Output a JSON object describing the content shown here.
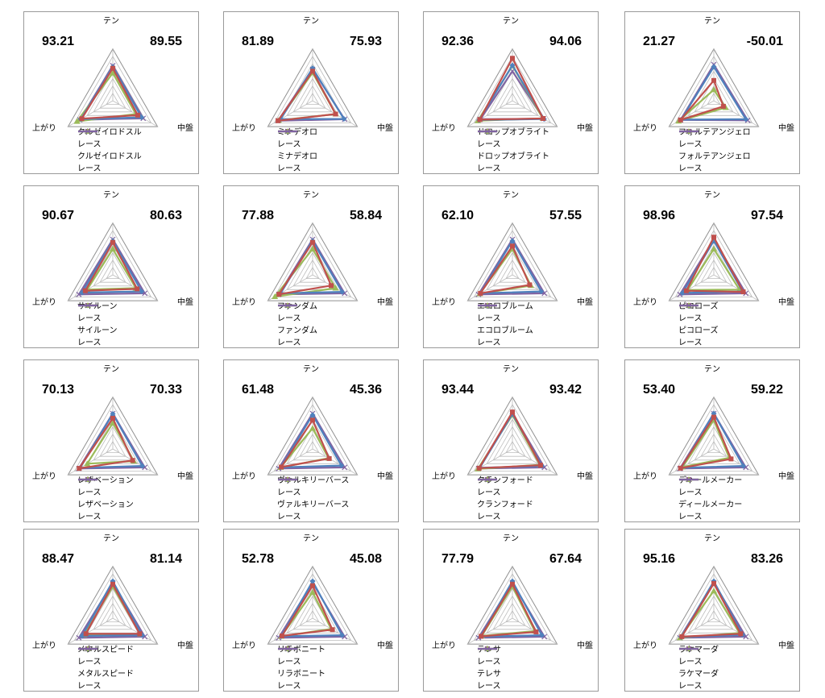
{
  "axes": [
    "テン",
    "中盤",
    "上がり"
  ],
  "colors": {
    "red": "#C0504D",
    "blue": "#4F81BD",
    "green": "#9BBB59",
    "purple": "#8064A2"
  },
  "race_label": "レース",
  "chart_data": [
    {
      "type": "radar",
      "left_value": "93.21",
      "right_value": "89.55",
      "horse": "クルゼイロドスル",
      "axes": [
        "テン",
        "中盤",
        "上がり"
      ],
      "rmax": 120,
      "series": [
        {
          "name": "クルゼイロドスル",
          "color": "#C0504D",
          "values": [
            88,
            78,
            97
          ]
        },
        {
          "name": "レース",
          "color": "#4F81BD",
          "values": [
            92,
            90,
            100
          ]
        },
        {
          "name": "クルゼイロドスル",
          "color": "#9BBB59",
          "values": [
            75,
            72,
            112
          ]
        },
        {
          "name": "レース",
          "color": "#8064A2",
          "values": [
            95,
            95,
            103
          ]
        }
      ]
    },
    {
      "type": "radar",
      "left_value": "81.89",
      "right_value": "75.93",
      "horse": "ミナデオロ",
      "axes": [
        "テン",
        "中盤",
        "上がり"
      ],
      "rmax": 120,
      "series": [
        {
          "name": "ミナデオロ",
          "color": "#C0504D",
          "values": [
            80,
            72,
            108
          ]
        },
        {
          "name": "レース",
          "color": "#4F81BD",
          "values": [
            88,
            98,
            100
          ]
        },
        {
          "name": "ミナデオロ",
          "color": "#9BBB59",
          "values": [
            76,
            72,
            106
          ]
        },
        {
          "name": "レース",
          "color": "#8064A2",
          "values": [
            85,
            100,
            108
          ]
        }
      ]
    },
    {
      "type": "radar",
      "left_value": "92.36",
      "right_value": "94.06",
      "horse": "ドロップオブライト",
      "axes": [
        "テン",
        "中盤",
        "上がり"
      ],
      "rmax": 120,
      "series": [
        {
          "name": "ドロップオブライト",
          "color": "#C0504D",
          "values": [
            115,
            96,
            102
          ]
        },
        {
          "name": "レース",
          "color": "#4F81BD",
          "values": [
            96,
            99,
            104
          ]
        },
        {
          "name": "ドロップオブライト",
          "color": "#9BBB59",
          "values": [
            95,
            95,
            108
          ]
        },
        {
          "name": "レース",
          "color": "#8064A2",
          "values": [
            80,
            97,
            100
          ]
        }
      ]
    },
    {
      "type": "radar",
      "left_value": "21.27",
      "right_value": "-50.01",
      "horse": "フォルテアンジェロ",
      "axes": [
        "テン",
        "中盤",
        "上がり"
      ],
      "rmax": 120,
      "series": [
        {
          "name": "フォルテアンジェロ",
          "color": "#C0504D",
          "values": [
            55,
            30,
            104
          ]
        },
        {
          "name": "レース",
          "color": "#4F81BD",
          "values": [
            92,
            100,
            102
          ]
        },
        {
          "name": "フォルテアンジェロ",
          "color": "#9BBB59",
          "values": [
            30,
            37,
            110
          ]
        },
        {
          "name": "レース",
          "color": "#8064A2",
          "values": [
            98,
            106,
            104
          ]
        }
      ]
    },
    {
      "type": "radar",
      "left_value": "90.67",
      "right_value": "80.63",
      "horse": "サイルーン",
      "axes": [
        "テン",
        "中盤",
        "上がり"
      ],
      "rmax": 120,
      "series": [
        {
          "name": "サイルーン",
          "color": "#C0504D",
          "values": [
            88,
            76,
            86
          ]
        },
        {
          "name": "レース",
          "color": "#4F81BD",
          "values": [
            92,
            90,
            96
          ]
        },
        {
          "name": "サイルーン",
          "color": "#9BBB59",
          "values": [
            70,
            72,
            80
          ]
        },
        {
          "name": "レース",
          "color": "#8064A2",
          "values": [
            96,
            100,
            106
          ]
        }
      ]
    },
    {
      "type": "radar",
      "left_value": "77.88",
      "right_value": "58.84",
      "horse": "ファンダム",
      "axes": [
        "テン",
        "中盤",
        "上がり"
      ],
      "rmax": 120,
      "series": [
        {
          "name": "ファンダム",
          "color": "#C0504D",
          "values": [
            88,
            58,
            105
          ]
        },
        {
          "name": "レース",
          "color": "#4F81BD",
          "values": [
            92,
            92,
            100
          ]
        },
        {
          "name": "ファンダム",
          "color": "#9BBB59",
          "values": [
            70,
            72,
            118
          ]
        },
        {
          "name": "レース",
          "color": "#8064A2",
          "values": [
            96,
            100,
            106
          ]
        }
      ]
    },
    {
      "type": "radar",
      "left_value": "62.10",
      "right_value": "57.55",
      "horse": "エコロブルーム",
      "axes": [
        "テン",
        "中盤",
        "上がり"
      ],
      "rmax": 120,
      "series": [
        {
          "name": "エコロブルーム",
          "color": "#C0504D",
          "values": [
            78,
            54,
            100
          ]
        },
        {
          "name": "レース",
          "color": "#4F81BD",
          "values": [
            92,
            90,
            100
          ]
        },
        {
          "name": "エコロブルーム",
          "color": "#9BBB59",
          "values": [
            70,
            58,
            102
          ]
        },
        {
          "name": "レース",
          "color": "#8064A2",
          "values": [
            96,
            100,
            106
          ]
        }
      ]
    },
    {
      "type": "radar",
      "left_value": "98.96",
      "right_value": "97.54",
      "horse": "ピコローズ",
      "axes": [
        "テン",
        "中盤",
        "上がり"
      ],
      "rmax": 120,
      "series": [
        {
          "name": "ピコローズ",
          "color": "#C0504D",
          "values": [
            102,
            92,
            86
          ]
        },
        {
          "name": "レース",
          "color": "#4F81BD",
          "values": [
            92,
            90,
            98
          ]
        },
        {
          "name": "ピコローズ",
          "color": "#9BBB59",
          "values": [
            70,
            80,
            82
          ]
        },
        {
          "name": "レース",
          "color": "#8064A2",
          "values": [
            96,
            100,
            106
          ]
        }
      ]
    },
    {
      "type": "radar",
      "left_value": "70.13",
      "right_value": "70.33",
      "horse": "レザベーション",
      "axes": [
        "テン",
        "中盤",
        "上がり"
      ],
      "rmax": 120,
      "series": [
        {
          "name": "レザベーション",
          "color": "#C0504D",
          "values": [
            83,
            62,
            105
          ]
        },
        {
          "name": "レース",
          "color": "#4F81BD",
          "values": [
            95,
            92,
            102
          ]
        },
        {
          "name": "レザベーション",
          "color": "#9BBB59",
          "values": [
            70,
            66,
            80
          ]
        },
        {
          "name": "レース",
          "color": "#8064A2",
          "values": [
            96,
            100,
            106
          ]
        }
      ]
    },
    {
      "type": "radar",
      "left_value": "61.48",
      "right_value": "45.36",
      "horse": "ヴァルキリーバース",
      "axes": [
        "テン",
        "中盤",
        "上がり"
      ],
      "rmax": 120,
      "series": [
        {
          "name": "ヴァルキリーバース",
          "color": "#C0504D",
          "values": [
            78,
            52,
            98
          ]
        },
        {
          "name": "レース",
          "color": "#4F81BD",
          "values": [
            92,
            90,
            100
          ]
        },
        {
          "name": "ヴァルキリーバース",
          "color": "#9BBB59",
          "values": [
            56,
            50,
            100
          ]
        },
        {
          "name": "レース",
          "color": "#8064A2",
          "values": [
            96,
            100,
            106
          ]
        }
      ]
    },
    {
      "type": "radar",
      "left_value": "93.44",
      "right_value": "93.42",
      "horse": "クランフォード",
      "axes": [
        "テン",
        "中盤",
        "上がり"
      ],
      "rmax": 120,
      "series": [
        {
          "name": "クランフォード",
          "color": "#C0504D",
          "values": [
            100,
            88,
            104
          ]
        },
        {
          "name": "レース",
          "color": "#4F81BD",
          "values": [
            95,
            92,
            102
          ]
        },
        {
          "name": "クランフォード",
          "color": "#9BBB59",
          "values": [
            92,
            86,
            108
          ]
        },
        {
          "name": "レース",
          "color": "#8064A2",
          "values": [
            96,
            100,
            106
          ]
        }
      ]
    },
    {
      "type": "radar",
      "left_value": "53.40",
      "right_value": "59.22",
      "horse": "ディールメーカー",
      "axes": [
        "テン",
        "中盤",
        "上がり"
      ],
      "rmax": 120,
      "series": [
        {
          "name": "ディールメーカー",
          "color": "#C0504D",
          "values": [
            86,
            54,
            104
          ]
        },
        {
          "name": "レース",
          "color": "#4F81BD",
          "values": [
            96,
            92,
            102
          ]
        },
        {
          "name": "ディールメーカー",
          "color": "#9BBB59",
          "values": [
            78,
            48,
            98
          ]
        },
        {
          "name": "レース",
          "color": "#8064A2",
          "values": [
            96,
            100,
            106
          ]
        }
      ]
    },
    {
      "type": "radar",
      "left_value": "88.47",
      "right_value": "81.14",
      "horse": "メタルスピード",
      "axes": [
        "テン",
        "中盤",
        "上がり"
      ],
      "rmax": 120,
      "series": [
        {
          "name": "メタルスピード",
          "color": "#C0504D",
          "values": [
            92,
            84,
            84
          ]
        },
        {
          "name": "レース",
          "color": "#4F81BD",
          "values": [
            100,
            92,
            96
          ]
        },
        {
          "name": "メタルスピード",
          "color": "#9BBB59",
          "values": [
            86,
            86,
            90
          ]
        },
        {
          "name": "レース",
          "color": "#8064A2",
          "values": [
            96,
            100,
            106
          ]
        }
      ]
    },
    {
      "type": "radar",
      "left_value": "52.78",
      "right_value": "45.08",
      "horse": "リラボニート",
      "axes": [
        "テン",
        "中盤",
        "上がり"
      ],
      "rmax": 120,
      "series": [
        {
          "name": "リラボニート",
          "color": "#C0504D",
          "values": [
            88,
            62,
            96
          ]
        },
        {
          "name": "レース",
          "color": "#4F81BD",
          "values": [
            100,
            92,
            98
          ]
        },
        {
          "name": "リラボニート",
          "color": "#9BBB59",
          "values": [
            70,
            58,
            98
          ]
        },
        {
          "name": "レース",
          "color": "#8064A2",
          "values": [
            96,
            100,
            106
          ]
        }
      ]
    },
    {
      "type": "radar",
      "left_value": "77.79",
      "right_value": "67.64",
      "horse": "テレサ",
      "axes": [
        "テン",
        "中盤",
        "上がり"
      ],
      "rmax": 120,
      "series": [
        {
          "name": "テレサ",
          "color": "#C0504D",
          "values": [
            92,
            74,
            98
          ]
        },
        {
          "name": "レース",
          "color": "#4F81BD",
          "values": [
            100,
            92,
            100
          ]
        },
        {
          "name": "テレサ",
          "color": "#9BBB59",
          "values": [
            86,
            70,
            96
          ]
        },
        {
          "name": "レース",
          "color": "#8064A2",
          "values": [
            96,
            100,
            106
          ]
        }
      ]
    },
    {
      "type": "radar",
      "left_value": "95.16",
      "right_value": "83.26",
      "horse": "ラケマーダ",
      "axes": [
        "テン",
        "中盤",
        "上がり"
      ],
      "rmax": 120,
      "series": [
        {
          "name": "ラケマーダ",
          "color": "#C0504D",
          "values": [
            94,
            84,
            100
          ]
        },
        {
          "name": "レース",
          "color": "#4F81BD",
          "values": [
            100,
            90,
            102
          ]
        },
        {
          "name": "ラケマーダ",
          "color": "#9BBB59",
          "values": [
            74,
            80,
            106
          ]
        },
        {
          "name": "レース",
          "color": "#8064A2",
          "values": [
            96,
            100,
            106
          ]
        }
      ]
    }
  ]
}
